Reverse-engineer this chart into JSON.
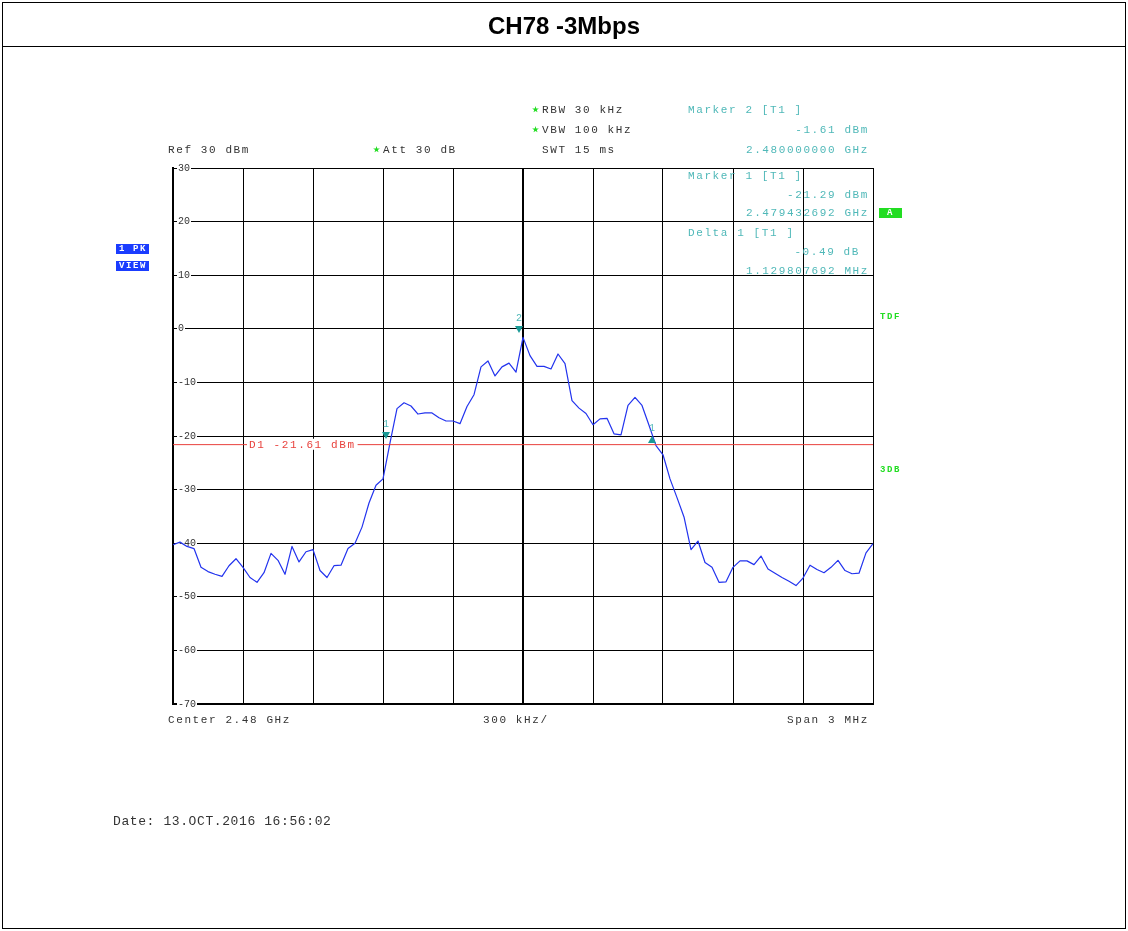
{
  "chart_data": {
    "type": "line",
    "title": "CH78 -3Mbps",
    "categories": [
      null,
      null,
      null,
      null,
      null,
      null,
      null,
      null,
      null,
      null,
      null,
      null,
      null,
      null,
      null,
      null,
      null,
      null,
      null,
      null,
      null,
      null,
      null,
      null,
      null,
      null,
      null,
      null,
      null,
      null,
      null,
      null,
      null,
      null,
      null,
      null,
      null,
      null,
      null,
      null,
      null,
      null,
      null,
      null,
      null,
      null,
      null,
      null,
      null,
      null,
      null,
      null,
      null,
      null,
      null,
      null,
      null,
      null,
      null,
      null,
      null,
      null,
      null,
      null,
      null,
      null,
      null,
      null,
      null,
      null,
      null,
      null,
      null,
      null,
      null,
      null,
      null,
      null,
      null,
      null,
      null,
      null,
      null,
      null,
      null,
      null,
      null,
      null,
      null,
      null,
      null,
      null,
      null,
      null,
      null,
      null,
      null,
      null,
      null,
      null,
      null
    ],
    "series": [
      {
        "color": "#2233ee",
        "values": [
          -40.3,
          -39.8,
          -40.6,
          -41,
          -44.5,
          -45.3,
          -45.8,
          -46.2,
          -44.2,
          -42.9,
          -44.5,
          -46.4,
          -47.3,
          -45.5,
          -41.9,
          -43.2,
          -45.8,
          -40.6,
          -43.5,
          -41.6,
          -41.2,
          -45.1,
          -46.4,
          -44.2,
          -44.1,
          -41,
          -40,
          -37,
          -32.5,
          -29.2,
          -28,
          -21.3,
          -14.9,
          -13.8,
          -14.4,
          -15.9,
          -15.7,
          -15.7,
          -16.6,
          -17.2,
          -17.2,
          -17.7,
          -14.5,
          -12.3,
          -7.1,
          -6,
          -8.8,
          -7.1,
          -6.4,
          -8.1,
          -1.6,
          -5,
          -7,
          -7,
          -7.5,
          -4.7,
          -6.5,
          -13.4,
          -14.8,
          -15.8,
          -17.9,
          -16.8,
          -16.7,
          -19.6,
          -19.8,
          -14.3,
          -12.8,
          -14.3,
          -18,
          -21.8,
          -23.5,
          -28,
          -31.5,
          -35.1,
          -41.2,
          -39.6,
          -43.6,
          -44.5,
          -47.3,
          -47.2,
          -44.5,
          -43.3,
          -43.3,
          -44,
          -42.4,
          -44.8,
          -45.6,
          -46.4,
          -47.1,
          -47.9,
          -46.5,
          -44.1,
          -44.9,
          -45.5,
          -44.5,
          -43.2,
          -45.1,
          -45.7,
          -45.6,
          -41.8,
          -40.1
        ]
      }
    ],
    "ylim": [
      -70,
      30
    ],
    "yticks": [
      -70,
      -60,
      -50,
      -40,
      -30,
      -20,
      -10,
      0,
      10,
      20,
      30
    ],
    "grid": true,
    "tick_labels": "y",
    "marker": "none",
    "ref_lines": [
      {
        "axis": "y",
        "value": -21.61,
        "label": "D1 -21.61 dBm",
        "color": "#e8413c"
      }
    ],
    "annotations": [
      "RBW 30 kHz",
      "VBW 100 kHz",
      "SWT 15 ms",
      "Ref 30 dBm",
      "Att 30 dB",
      "Marker 2 [T1 ]",
      "-1.61 dBm",
      "2.480000000 GHz",
      "Marker 1 [T1 ]",
      "-21.29 dBm",
      "2.479432692 GHz",
      "Delta 1 [T1 ]",
      "-0.49 dB",
      "1.129807692 MHz",
      "1 PK",
      "VIEW",
      "A",
      "TDF",
      "3DB",
      "Center 2.48 GHz",
      "300 kHz/",
      "Span 3 MHz",
      "Date: 13.OCT.2016 16:56:02",
      "2",
      "1",
      "1"
    ]
  }
}
